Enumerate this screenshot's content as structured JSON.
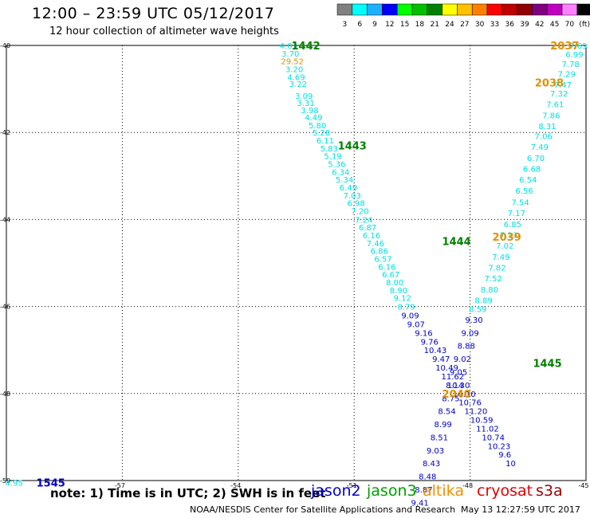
{
  "header": {
    "title": "12:00 – 23:59 UTC 05/12/2017",
    "subtitle": "12 hour collection of altimeter wave heights"
  },
  "colorbar": {
    "colors": [
      "#808080",
      "#00ffff",
      "#1fb0ff",
      "#0000ff",
      "#00ff00",
      "#00c000",
      "#008000",
      "#ffff00",
      "#ffc000",
      "#ff8000",
      "#ff0000",
      "#c00000",
      "#900000",
      "#800080",
      "#c000c0",
      "#ff80ff",
      "#000000"
    ],
    "labels": [
      "3",
      "6",
      "9",
      "12",
      "15",
      "18",
      "21",
      "24",
      "27",
      "30",
      "33",
      "36",
      "39",
      "42",
      "45",
      "70",
      "(ft)"
    ]
  },
  "footer": {
    "note": "note: 1) Time is in UTC; 2) SWH is in feet",
    "credit": "NOAA/NESDIS Center for Satellite Applications and Research",
    "timestamp": "May 13 12:27:59 UTC 2017"
  },
  "legend": [
    {
      "name": "jason2",
      "color": "#0000cc"
    },
    {
      "name": "jason3",
      "color": "#00a000"
    },
    {
      "name": "altika",
      "color": "#f09000"
    },
    {
      "name": "cryosat",
      "color": "#e00000"
    },
    {
      "name": "s3a",
      "color": "#990000"
    }
  ],
  "chart_data": {
    "type": "scatter",
    "title": "12:00 – 23:59 UTC 05/12/2017",
    "subtitle": "12 hour collection of altimeter wave heights",
    "xlim": [
      -60,
      -45
    ],
    "ylim": [
      -50,
      -40
    ],
    "x_ticks": [
      -57,
      -54,
      -51,
      -48,
      -45
    ],
    "x_tick_labels": [
      "-57",
      "-54",
      "-51",
      "-48",
      "-45"
    ],
    "y_ticks": [
      -40,
      -42,
      -44,
      -46,
      -48,
      -50
    ],
    "y_tick_labels": [
      "-40",
      "-42",
      "-44",
      "-46",
      "-48",
      "-50"
    ],
    "corner_labels": [
      {
        "x": -60,
        "y": -40,
        "text": "-40"
      },
      {
        "x": -60,
        "y": -50,
        "text": "-50"
      }
    ],
    "grid": true,
    "grid_style": "dotted",
    "passes": [
      {
        "label": "1442",
        "satellite": "jason3",
        "label_color": "#008000",
        "points": [
          {
            "lon": -52.7,
            "lat": -40.0,
            "v": "4.03",
            "c": "#00e0e0"
          },
          {
            "lon": -52.65,
            "lat": -40.18,
            "v": "3.70",
            "c": "#00e0e0"
          },
          {
            "lon": -52.6,
            "lat": -40.36,
            "v": "29.52",
            "c": "#e09000"
          },
          {
            "lon": -52.55,
            "lat": -40.54,
            "v": "3.20",
            "c": "#00e0e0"
          },
          {
            "lon": -52.5,
            "lat": -40.72,
            "v": "4.69",
            "c": "#00e0e0"
          },
          {
            "lon": -52.45,
            "lat": -40.88,
            "v": "3.22",
            "c": "#00e0e0"
          },
          {
            "lon": -52.3,
            "lat": -41.15,
            "v": "3.09",
            "c": "#00e0e0"
          },
          {
            "lon": -52.25,
            "lat": -41.32,
            "v": "3.31",
            "c": "#00e0e0"
          },
          {
            "lon": -52.15,
            "lat": -41.48,
            "v": "3.98",
            "c": "#00e0e0"
          },
          {
            "lon": -52.05,
            "lat": -41.65,
            "v": "4.49",
            "c": "#00e0e0"
          },
          {
            "lon": -51.95,
            "lat": -41.83,
            "v": "5.80",
            "c": "#00e0e0"
          },
          {
            "lon": -51.85,
            "lat": -42.0,
            "v": "5.28",
            "c": "#00e0e0"
          },
          {
            "lon": -51.75,
            "lat": -42.18,
            "v": "6.11",
            "c": "#00e0e0"
          },
          {
            "lon": -51.65,
            "lat": -42.36,
            "v": "5.83",
            "c": "#00e0e0"
          },
          {
            "lon": -51.55,
            "lat": -42.54,
            "v": "5.19",
            "c": "#00e0e0"
          },
          {
            "lon": -51.45,
            "lat": -42.72,
            "v": "5.36",
            "c": "#00e0e0"
          },
          {
            "lon": -51.35,
            "lat": -42.9,
            "v": "6.34",
            "c": "#00e0e0"
          },
          {
            "lon": -51.25,
            "lat": -43.08,
            "v": "5.34",
            "c": "#00e0e0"
          },
          {
            "lon": -51.15,
            "lat": -43.26,
            "v": "6.49",
            "c": "#00e0e0"
          },
          {
            "lon": -51.05,
            "lat": -43.44,
            "v": "7.03",
            "c": "#00e0e0"
          },
          {
            "lon": -50.95,
            "lat": -43.62,
            "v": "6.98",
            "c": "#00e0e0"
          },
          {
            "lon": -50.85,
            "lat": -43.8,
            "v": "7.20",
            "c": "#00e0e0"
          },
          {
            "lon": -50.75,
            "lat": -44.0,
            "v": "7.24",
            "c": "#00e0e0"
          },
          {
            "lon": -50.65,
            "lat": -44.18,
            "v": "6.87",
            "c": "#00e0e0"
          },
          {
            "lon": -50.55,
            "lat": -44.36,
            "v": "6.16",
            "c": "#00e0e0"
          },
          {
            "lon": -50.45,
            "lat": -44.54,
            "v": "7.46",
            "c": "#00e0e0"
          },
          {
            "lon": -50.35,
            "lat": -44.72,
            "v": "6.86",
            "c": "#00e0e0"
          },
          {
            "lon": -50.25,
            "lat": -44.9,
            "v": "6.57",
            "c": "#00e0e0"
          },
          {
            "lon": -50.15,
            "lat": -45.08,
            "v": "6.16",
            "c": "#00e0e0"
          },
          {
            "lon": -50.05,
            "lat": -45.26,
            "v": "6.67",
            "c": "#00e0e0"
          },
          {
            "lon": -49.95,
            "lat": -45.44,
            "v": "8.00",
            "c": "#00e0e0"
          },
          {
            "lon": -49.85,
            "lat": -45.62,
            "v": "8.90",
            "c": "#00e0e0"
          },
          {
            "lon": -49.75,
            "lat": -45.8,
            "v": "9.12",
            "c": "#00e0e0"
          },
          {
            "lon": -49.65,
            "lat": -46.0,
            "v": "8.79",
            "c": "#00e0e0"
          },
          {
            "lon": -49.55,
            "lat": -46.2,
            "v": "9.09",
            "c": "#0000c8"
          },
          {
            "lon": -49.4,
            "lat": -46.4,
            "v": "9.07",
            "c": "#0000c8"
          },
          {
            "lon": -49.2,
            "lat": -46.6,
            "v": "9.16",
            "c": "#0000c8"
          },
          {
            "lon": -49.05,
            "lat": -46.8,
            "v": "9.76",
            "c": "#0000c8"
          },
          {
            "lon": -48.9,
            "lat": -47.0,
            "v": "10.43",
            "c": "#0000c8"
          },
          {
            "lon": -48.75,
            "lat": -47.2,
            "v": "9.47",
            "c": "#0000c8"
          },
          {
            "lon": -48.6,
            "lat": -47.4,
            "v": "10.49",
            "c": "#0000c8"
          },
          {
            "lon": -48.45,
            "lat": -47.6,
            "v": "11.62",
            "c": "#0000c8"
          },
          {
            "lon": -48.3,
            "lat": -47.8,
            "v": "10.30",
            "c": "#0000c8"
          },
          {
            "lon": -48.15,
            "lat": -48.0,
            "v": "10.10",
            "c": "#0000c8"
          },
          {
            "lon": -48.0,
            "lat": -48.2,
            "v": "10.76",
            "c": "#0000c8"
          },
          {
            "lon": -47.85,
            "lat": -48.4,
            "v": "11.20",
            "c": "#0000c8"
          },
          {
            "lon": -47.7,
            "lat": -48.6,
            "v": "10.59",
            "c": "#0000c8"
          },
          {
            "lon": -47.55,
            "lat": -48.8,
            "v": "11.02",
            "c": "#0000c8"
          },
          {
            "lon": -47.4,
            "lat": -49.0,
            "v": "10.74",
            "c": "#0000c8"
          },
          {
            "lon": -47.25,
            "lat": -49.2,
            "v": "10.23",
            "c": "#0000c8"
          },
          {
            "lon": -47.1,
            "lat": -49.4,
            "v": "9.6",
            "c": "#0000c8"
          },
          {
            "lon": -46.95,
            "lat": -49.6,
            "v": "10",
            "c": "#0000c8"
          }
        ]
      },
      {
        "label": "2037",
        "satellite": "altika",
        "label_color": "#e09000",
        "points": [
          {
            "lon": -45.2,
            "lat": -40.0,
            "v": "7.69",
            "c": "#00e0e0"
          },
          {
            "lon": -45.3,
            "lat": -40.2,
            "v": "6.99",
            "c": "#00e0e0"
          },
          {
            "lon": -45.4,
            "lat": -40.42,
            "v": "7.78",
            "c": "#00e0e0"
          },
          {
            "lon": -45.5,
            "lat": -40.65,
            "v": "7.29",
            "c": "#00e0e0"
          },
          {
            "lon": -45.6,
            "lat": -40.9,
            "v": "7.47",
            "c": "#00e0e0"
          },
          {
            "lon": -45.7,
            "lat": -41.1,
            "v": "7.32",
            "c": "#00e0e0"
          },
          {
            "lon": -45.8,
            "lat": -41.35,
            "v": "7.61",
            "c": "#00e0e0"
          },
          {
            "lon": -45.9,
            "lat": -41.6,
            "v": "7.86",
            "c": "#00e0e0"
          },
          {
            "lon": -46.0,
            "lat": -41.85,
            "v": "8.31",
            "c": "#00e0e0"
          },
          {
            "lon": -46.1,
            "lat": -42.08,
            "v": "7.06",
            "c": "#00e0e0"
          },
          {
            "lon": -46.2,
            "lat": -42.33,
            "v": "7.49",
            "c": "#00e0e0"
          },
          {
            "lon": -46.3,
            "lat": -42.58,
            "v": "6.70",
            "c": "#00e0e0"
          },
          {
            "lon": -46.4,
            "lat": -42.83,
            "v": "6.68",
            "c": "#00e0e0"
          },
          {
            "lon": -46.5,
            "lat": -43.08,
            "v": "6.54",
            "c": "#00e0e0"
          },
          {
            "lon": -46.6,
            "lat": -43.33,
            "v": "6.56",
            "c": "#00e0e0"
          },
          {
            "lon": -46.7,
            "lat": -43.6,
            "v": "7.54",
            "c": "#00e0e0"
          },
          {
            "lon": -46.8,
            "lat": -43.85,
            "v": "7.17",
            "c": "#00e0e0"
          },
          {
            "lon": -46.9,
            "lat": -44.1,
            "v": "6.85",
            "c": "#00e0e0"
          },
          {
            "lon": -47.0,
            "lat": -44.35,
            "v": "7.13",
            "c": "#00e0e0"
          },
          {
            "lon": -47.1,
            "lat": -44.6,
            "v": "7.02",
            "c": "#00e0e0"
          },
          {
            "lon": -47.2,
            "lat": -44.85,
            "v": "7.49",
            "c": "#00e0e0"
          },
          {
            "lon": -47.3,
            "lat": -45.1,
            "v": "7.82",
            "c": "#00e0e0"
          },
          {
            "lon": -47.4,
            "lat": -45.35,
            "v": "7.52",
            "c": "#00e0e0"
          },
          {
            "lon": -47.5,
            "lat": -45.6,
            "v": "8.80",
            "c": "#00e0e0"
          },
          {
            "lon": -47.65,
            "lat": -45.85,
            "v": "8.89",
            "c": "#00e0e0"
          },
          {
            "lon": -47.8,
            "lat": -46.05,
            "v": "8.59",
            "c": "#00e0e0"
          },
          {
            "lon": -47.9,
            "lat": -46.3,
            "v": "9.30",
            "c": "#0000c8"
          },
          {
            "lon": -48.0,
            "lat": -46.6,
            "v": "9.09",
            "c": "#0000c8"
          },
          {
            "lon": -48.1,
            "lat": -46.9,
            "v": "8.88",
            "c": "#0000c8"
          },
          {
            "lon": -48.2,
            "lat": -47.2,
            "v": "9.02",
            "c": "#0000c8"
          },
          {
            "lon": -48.3,
            "lat": -47.5,
            "v": "9.05",
            "c": "#0000c8"
          },
          {
            "lon": -48.4,
            "lat": -47.8,
            "v": "8.14",
            "c": "#0000c8"
          },
          {
            "lon": -48.5,
            "lat": -48.1,
            "v": "8.75",
            "c": "#0000c8"
          },
          {
            "lon": -48.6,
            "lat": -48.4,
            "v": "8.54",
            "c": "#0000c8"
          },
          {
            "lon": -48.7,
            "lat": -48.7,
            "v": "8.99",
            "c": "#0000c8"
          },
          {
            "lon": -48.8,
            "lat": -49.0,
            "v": "8.51",
            "c": "#0000c8"
          },
          {
            "lon": -48.9,
            "lat": -49.3,
            "v": "9.03",
            "c": "#0000c8"
          },
          {
            "lon": -49.0,
            "lat": -49.6,
            "v": "8.43",
            "c": "#0000c8"
          },
          {
            "lon": -49.1,
            "lat": -49.9,
            "v": "8.48",
            "c": "#0000c8"
          },
          {
            "lon": -49.2,
            "lat": -50.2,
            "v": "8.87",
            "c": "#0000c8"
          },
          {
            "lon": -49.3,
            "lat": -50.5,
            "v": "9.41",
            "c": "#0000c8"
          }
        ]
      },
      {
        "label": "1545",
        "satellite": "jason2",
        "label_color": "#0000c8",
        "points": [
          {
            "lon": -59.8,
            "lat": -50.05,
            "v": "4.95",
            "c": "#00e0e0"
          }
        ]
      }
    ],
    "pass_labels": [
      {
        "text": "1442",
        "lon": -52.25,
        "lat": -40.0,
        "color": "#008000"
      },
      {
        "text": "1443",
        "lon": -51.05,
        "lat": -42.3,
        "color": "#008000"
      },
      {
        "text": "1444",
        "lon": -48.35,
        "lat": -44.5,
        "color": "#008000"
      },
      {
        "text": "1445",
        "lon": -46.0,
        "lat": -47.3,
        "color": "#008000"
      },
      {
        "text": "2037",
        "lon": -45.55,
        "lat": -40.0,
        "color": "#e09000"
      },
      {
        "text": "2038",
        "lon": -45.95,
        "lat": -40.85,
        "color": "#e09000"
      },
      {
        "text": "2039",
        "lon": -47.05,
        "lat": -44.4,
        "color": "#e09000"
      },
      {
        "text": "2040",
        "lon": -48.35,
        "lat": -48.0,
        "color": "#e09000"
      },
      {
        "text": "1545",
        "lon": -58.85,
        "lat": -50.05,
        "color": "#0000c8"
      }
    ]
  }
}
